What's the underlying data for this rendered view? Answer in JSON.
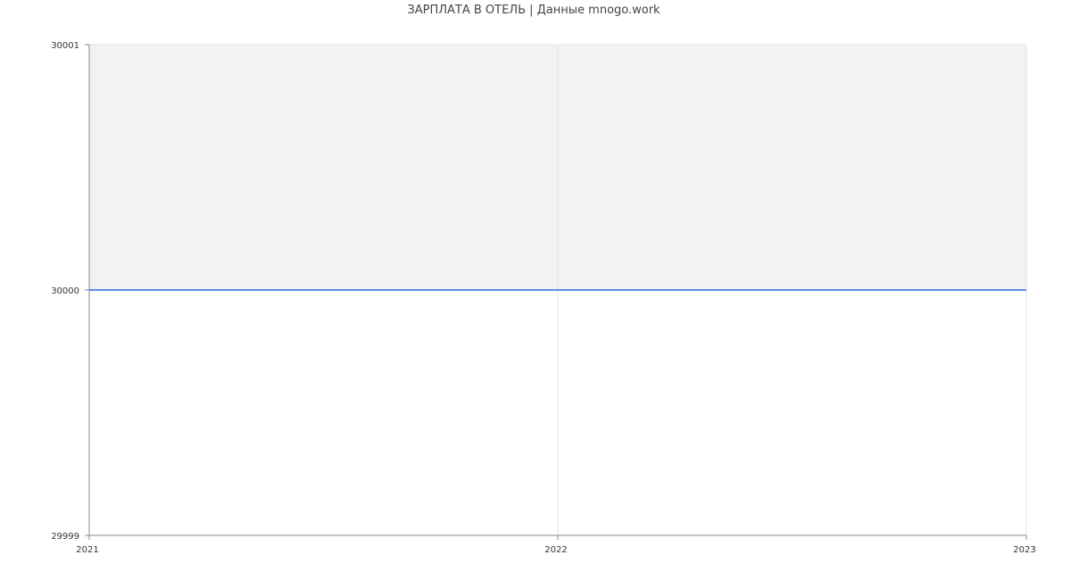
{
  "chart_data": {
    "type": "line",
    "title": "ЗАРПЛАТА В  ОТЕЛЬ | Данные mnogo.work",
    "x": [
      "2021",
      "2022",
      "2023"
    ],
    "series": [
      {
        "values": [
          30000,
          30000,
          30000
        ],
        "color": "#5b8fe8"
      }
    ],
    "xlim": [
      2021,
      2023
    ],
    "ylim": [
      29999,
      30001
    ],
    "xticks": [
      "2021",
      "2022",
      "2023"
    ],
    "yticks": [
      "29999",
      "30000",
      "30001"
    ],
    "grid": true,
    "shade_color": "#f2f2f2"
  }
}
